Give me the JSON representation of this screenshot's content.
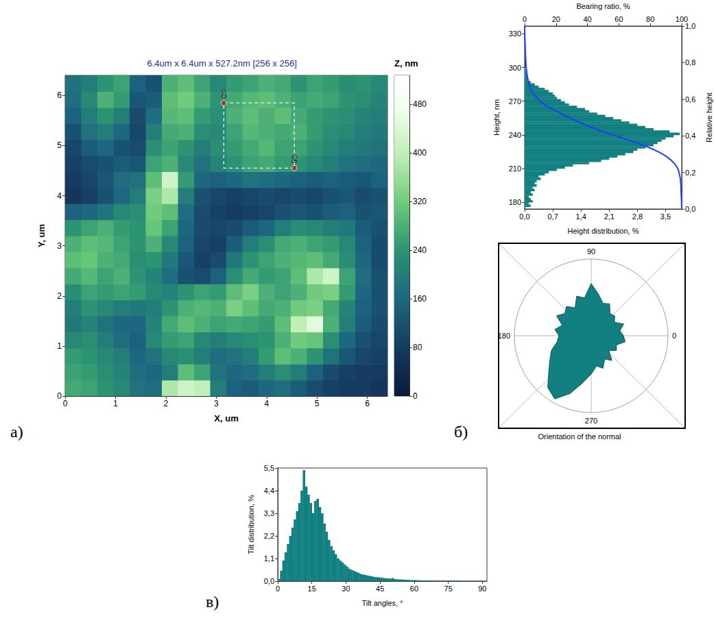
{
  "chart_data": [
    {
      "type": "heatmap",
      "panel": "а)",
      "title": "6.4um x 6.4um x 527.2nm [256 x 256]",
      "xlabel": "X, um",
      "ylabel": "Y, um",
      "xlim": [
        0,
        6.4
      ],
      "ylim": [
        0,
        6.4
      ],
      "xticks": [
        0,
        1,
        2,
        3,
        4,
        5,
        6
      ],
      "yticks": [
        0,
        1,
        2,
        3,
        4,
        5,
        6
      ],
      "x": [
        0.16,
        0.48,
        0.8,
        1.12,
        1.44,
        1.76,
        2.08,
        2.4,
        2.72,
        3.04,
        3.36,
        3.68,
        4.0,
        4.32,
        4.64,
        4.96,
        5.28,
        5.6,
        5.92,
        6.24
      ],
      "y": [
        0.16,
        0.48,
        0.8,
        1.12,
        1.44,
        1.76,
        2.08,
        2.4,
        2.72,
        3.04,
        3.36,
        3.68,
        4.0,
        4.32,
        4.64,
        4.96,
        5.28,
        5.6,
        5.92,
        6.24
      ],
      "z": [
        [
          270,
          260,
          240,
          220,
          180,
          170,
          380,
          420,
          400,
          200,
          150,
          140,
          160,
          170,
          140,
          110,
          90,
          80,
          80,
          70
        ],
        [
          260,
          250,
          230,
          210,
          170,
          160,
          200,
          300,
          260,
          180,
          160,
          170,
          200,
          230,
          200,
          150,
          110,
          90,
          80,
          80
        ],
        [
          250,
          240,
          220,
          200,
          160,
          180,
          220,
          230,
          200,
          170,
          180,
          200,
          250,
          300,
          280,
          240,
          180,
          130,
          100,
          90
        ],
        [
          220,
          230,
          200,
          170,
          150,
          220,
          250,
          260,
          220,
          200,
          220,
          230,
          240,
          280,
          320,
          310,
          230,
          160,
          120,
          100
        ],
        [
          190,
          210,
          180,
          160,
          160,
          210,
          270,
          300,
          280,
          260,
          270,
          260,
          250,
          300,
          400,
          450,
          280,
          200,
          140,
          110
        ],
        [
          200,
          240,
          220,
          200,
          190,
          200,
          240,
          280,
          290,
          280,
          330,
          300,
          270,
          280,
          320,
          330,
          270,
          210,
          150,
          120
        ],
        [
          230,
          260,
          250,
          260,
          250,
          220,
          210,
          240,
          260,
          250,
          300,
          330,
          280,
          260,
          280,
          320,
          330,
          250,
          160,
          120
        ],
        [
          270,
          290,
          260,
          280,
          240,
          210,
          170,
          120,
          110,
          150,
          230,
          270,
          250,
          260,
          300,
          380,
          420,
          260,
          170,
          120
        ],
        [
          300,
          310,
          280,
          270,
          230,
          240,
          190,
          130,
          90,
          110,
          190,
          240,
          260,
          280,
          290,
          300,
          270,
          230,
          160,
          110
        ],
        [
          280,
          300,
          290,
          260,
          240,
          280,
          220,
          150,
          100,
          90,
          140,
          200,
          230,
          270,
          280,
          260,
          250,
          220,
          150,
          110
        ],
        [
          240,
          260,
          280,
          250,
          240,
          310,
          260,
          160,
          110,
          100,
          110,
          140,
          160,
          200,
          230,
          220,
          200,
          190,
          140,
          120
        ],
        [
          150,
          160,
          180,
          220,
          230,
          320,
          300,
          170,
          110,
          90,
          80,
          90,
          100,
          120,
          130,
          120,
          140,
          150,
          120,
          130
        ],
        [
          70,
          90,
          120,
          160,
          200,
          330,
          380,
          200,
          120,
          100,
          90,
          100,
          110,
          100,
          110,
          100,
          120,
          130,
          110,
          120
        ],
        [
          80,
          100,
          130,
          170,
          180,
          300,
          420,
          250,
          160,
          150,
          160,
          180,
          170,
          160,
          150,
          140,
          150,
          140,
          130,
          150
        ],
        [
          90,
          110,
          120,
          140,
          130,
          260,
          280,
          220,
          180,
          210,
          240,
          260,
          270,
          250,
          240,
          220,
          200,
          180,
          170,
          160
        ],
        [
          100,
          140,
          160,
          120,
          110,
          230,
          260,
          240,
          200,
          230,
          250,
          270,
          290,
          260,
          260,
          240,
          220,
          200,
          190,
          180
        ],
        [
          120,
          180,
          200,
          160,
          100,
          200,
          270,
          280,
          230,
          220,
          260,
          290,
          280,
          270,
          280,
          250,
          230,
          220,
          200,
          190
        ],
        [
          150,
          200,
          240,
          200,
          110,
          170,
          290,
          300,
          250,
          230,
          280,
          300,
          280,
          300,
          270,
          250,
          240,
          230,
          210,
          200
        ],
        [
          170,
          220,
          280,
          250,
          130,
          140,
          300,
          320,
          280,
          240,
          270,
          290,
          300,
          280,
          260,
          270,
          260,
          240,
          230,
          210
        ],
        [
          180,
          200,
          240,
          260,
          150,
          120,
          280,
          300,
          260,
          220,
          250,
          260,
          280,
          270,
          240,
          260,
          250,
          230,
          240,
          220
        ]
      ],
      "colorbar": {
        "title": "Z, nm",
        "range": [
          0,
          527.2
        ],
        "ticks": [
          0,
          80,
          160,
          240,
          320,
          400,
          480
        ]
      },
      "markers": [
        {
          "label": "1",
          "x": 3.15,
          "y": 5.85
        },
        {
          "label": "2",
          "x": 4.55,
          "y": 4.55
        }
      ]
    },
    {
      "type": "histogram",
      "orientation": "horizontal",
      "xlabel": "Height distribution, %",
      "ylabel": "Height, nm",
      "x2label": "Bearing ratio, %",
      "y2label": "Relative height",
      "color": "#127f80",
      "bins": [
        176,
        178,
        180,
        182,
        184,
        186,
        188,
        190,
        192,
        194,
        196,
        198,
        200,
        202,
        204,
        206,
        208,
        210,
        212,
        214,
        216,
        218,
        220,
        222,
        224,
        226,
        228,
        230,
        232,
        234,
        236,
        238,
        240,
        242,
        244,
        246,
        248,
        250,
        252,
        254,
        256,
        258,
        260,
        262,
        264,
        266,
        268,
        270,
        272,
        274,
        276,
        278,
        280,
        282,
        284,
        286,
        288,
        290,
        292,
        294,
        296,
        298,
        300
      ],
      "values": [
        0.15,
        0.1,
        0.2,
        0.15,
        0.1,
        0.2,
        0.15,
        0.25,
        0.2,
        0.3,
        0.25,
        0.3,
        0.4,
        0.35,
        0.5,
        0.6,
        0.8,
        1.0,
        1.2,
        1.6,
        1.9,
        2.1,
        2.3,
        2.5,
        2.7,
        2.8,
        3.0,
        3.2,
        3.3,
        3.4,
        3.5,
        3.7,
        3.85,
        3.6,
        3.2,
        3.0,
        2.8,
        2.6,
        2.4,
        2.2,
        2.0,
        1.8,
        1.6,
        1.5,
        1.3,
        1.1,
        1.0,
        0.9,
        0.8,
        0.75,
        0.7,
        0.6,
        0.5,
        0.35,
        0.25,
        0.15,
        0.1,
        0.07,
        0.05,
        0.04,
        0.03,
        0.02
      ],
      "xlim": [
        0,
        3.9
      ],
      "xticks": [
        {
          "value": 0,
          "label": "0,0"
        },
        {
          "value": 0.7,
          "label": "0,7"
        },
        {
          "value": 1.4,
          "label": "1,4"
        },
        {
          "value": 2.1,
          "label": "2,1"
        },
        {
          "value": 2.8,
          "label": "2,8"
        },
        {
          "value": 3.5,
          "label": "3,5"
        }
      ],
      "x2lim": [
        0,
        100
      ],
      "x2ticks": [
        0,
        20,
        40,
        60,
        80,
        100
      ],
      "ylim": [
        174,
        337
      ],
      "yticks": [
        180,
        210,
        240,
        270,
        300,
        330
      ],
      "y2lim": [
        0,
        1
      ],
      "y2ticks": [
        {
          "value": 0,
          "label": "0,0"
        },
        {
          "value": 0.2,
          "label": "0,2"
        },
        {
          "value": 0.4,
          "label": "0,4"
        },
        {
          "value": 0.6,
          "label": "0,6"
        },
        {
          "value": 0.8,
          "label": "0,8"
        },
        {
          "value": 1,
          "label": "1,0"
        }
      ],
      "bearing_ratio": {
        "color": "#1f3cff",
        "x": [
          0,
          0.3,
          1,
          2,
          4,
          6.5,
          10,
          15,
          22,
          29,
          37,
          46,
          56,
          67,
          77,
          85,
          91,
          95,
          97.5,
          98.5,
          99.2,
          99.6,
          99.9,
          100
        ],
        "y": [
          337,
          320,
          300,
          290,
          280,
          275,
          270,
          265,
          260,
          255,
          250,
          245,
          240,
          235,
          230,
          225,
          220,
          215,
          210,
          205,
          200,
          190,
          180,
          174
        ]
      }
    },
    {
      "type": "polar",
      "panel": "б)",
      "label": "Orientation of the normal",
      "color": "#127f80",
      "angles": [
        0,
        10,
        20,
        30,
        40,
        50,
        60,
        70,
        80,
        90,
        100,
        110,
        120,
        130,
        140,
        150,
        160,
        170,
        180,
        190,
        200,
        210,
        220,
        230,
        240,
        250,
        260,
        270,
        280,
        290,
        300,
        310,
        320,
        330,
        340,
        350
      ],
      "values": [
        0.42,
        0.38,
        0.45,
        0.35,
        0.4,
        0.38,
        0.48,
        0.45,
        0.55,
        0.68,
        0.5,
        0.55,
        0.42,
        0.5,
        0.45,
        0.52,
        0.4,
        0.48,
        0.42,
        0.45,
        0.55,
        0.62,
        0.72,
        0.88,
        0.95,
        0.8,
        0.62,
        0.5,
        0.4,
        0.45,
        0.35,
        0.42,
        0.3,
        0.38,
        0.35,
        0.45
      ],
      "rlim": [
        0,
        1
      ],
      "angle_ticks": [
        0,
        90,
        180,
        270
      ]
    },
    {
      "type": "histogram",
      "panel": "в)",
      "color": "#127f80",
      "xlabel": "Tilt angles, °",
      "ylabel": "Tilt distribution, %",
      "bins": [
        0,
        1,
        2,
        3,
        4,
        5,
        6,
        7,
        8,
        9,
        10,
        11,
        12,
        13,
        14,
        15,
        16,
        17,
        18,
        19,
        20,
        21,
        22,
        23,
        24,
        25,
        26,
        27,
        28,
        29,
        30,
        31,
        32,
        33,
        34,
        35,
        36,
        37,
        38,
        39,
        40,
        41,
        42,
        43,
        44,
        45,
        46,
        47,
        48,
        49,
        50,
        51,
        52,
        53,
        54,
        55,
        56,
        57,
        58,
        59,
        60,
        61,
        62,
        63,
        64,
        65,
        66,
        67,
        68,
        69,
        70,
        71,
        72,
        73,
        74,
        75,
        76,
        77,
        78,
        79,
        80,
        81,
        82,
        83,
        84,
        85,
        86,
        87,
        88,
        89,
        90
      ],
      "values": [
        0.1,
        0.5,
        1.0,
        1.4,
        1.8,
        2.2,
        2.6,
        3.0,
        3.4,
        3.8,
        4.4,
        5.4,
        4.6,
        4.2,
        3.8,
        3.3,
        3.9,
        4.0,
        3.6,
        3.3,
        2.8,
        2.4,
        2.0,
        1.7,
        1.5,
        1.3,
        1.1,
        1.0,
        0.9,
        0.8,
        0.7,
        0.6,
        0.55,
        0.5,
        0.45,
        0.4,
        0.35,
        0.32,
        0.3,
        0.27,
        0.25,
        0.23,
        0.2,
        0.19,
        0.18,
        0.17,
        0.15,
        0.14,
        0.13,
        0.12,
        0.15,
        0.1,
        0.09,
        0.08,
        0.08,
        0.07,
        0.06,
        0.06,
        0.05,
        0.05,
        0.05,
        0.04,
        0.04,
        0.03,
        0.03,
        0.03,
        0.03,
        0.02,
        0.02,
        0.02,
        0.02,
        0.02,
        0.02,
        0.02,
        0.02,
        0.02,
        0.02,
        0.02,
        0.02,
        0.02,
        0.01,
        0.01,
        0.01,
        0.01,
        0.01,
        0.01,
        0.01,
        0.01,
        0.01,
        0.01
      ],
      "xlim": [
        0,
        92
      ],
      "xticks": [
        0,
        15,
        30,
        45,
        60,
        75,
        90
      ],
      "ylim": [
        0,
        5.5
      ],
      "yticks": [
        {
          "value": 0,
          "label": "0,0"
        },
        {
          "value": 1.1,
          "label": "1,1"
        },
        {
          "value": 2.2,
          "label": "2,2"
        },
        {
          "value": 3.3,
          "label": "3,3"
        },
        {
          "value": 4.4,
          "label": "4,4"
        },
        {
          "value": 5.5,
          "label": "5,5"
        }
      ]
    }
  ]
}
